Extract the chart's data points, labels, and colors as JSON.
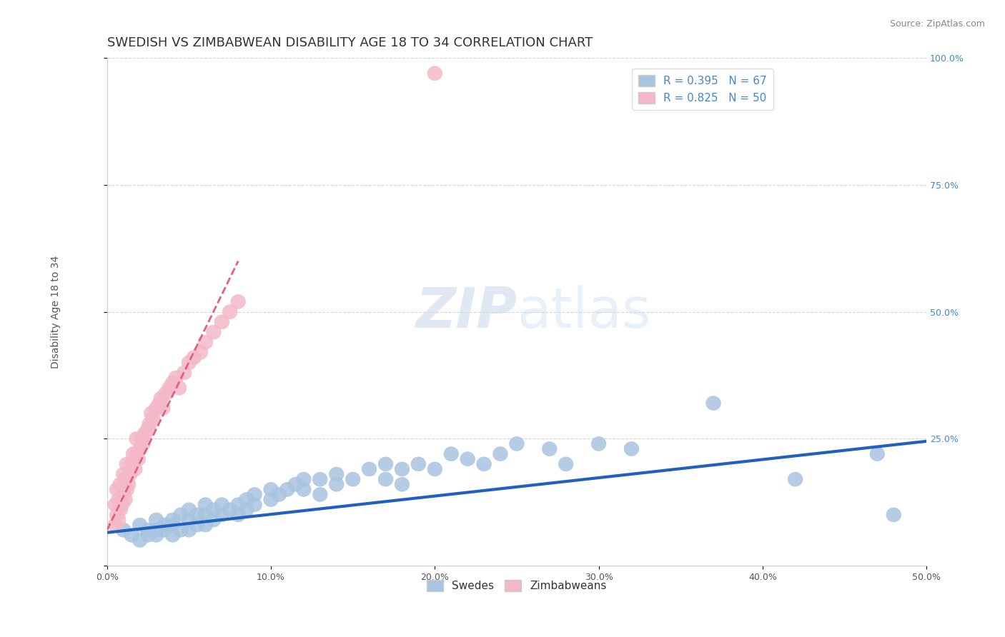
{
  "title": "SWEDISH VS ZIMBABWEAN DISABILITY AGE 18 TO 34 CORRELATION CHART",
  "source_text": "Source: ZipAtlas.com",
  "ylabel": "Disability Age 18 to 34",
  "xlim": [
    0.0,
    0.5
  ],
  "ylim": [
    0.0,
    1.0
  ],
  "xticks": [
    0.0,
    0.1,
    0.2,
    0.3,
    0.4,
    0.5
  ],
  "xticklabels": [
    "0.0%",
    "10.0%",
    "20.0%",
    "30.0%",
    "40.0%",
    "50.0%"
  ],
  "yticks": [
    0.0,
    0.25,
    0.5,
    0.75,
    1.0
  ],
  "yticklabels": [
    "",
    "25.0%",
    "50.0%",
    "75.0%",
    "100.0%"
  ],
  "blue_R": 0.395,
  "blue_N": 67,
  "pink_R": 0.825,
  "pink_N": 50,
  "blue_color": "#a8c4e0",
  "pink_color": "#f4b8c8",
  "blue_line_color": "#2060c0",
  "pink_line_color": "#e06080",
  "legend_label_blue": "Swedes",
  "legend_label_pink": "Zimbabweans",
  "blue_scatter_x": [
    0.01,
    0.015,
    0.02,
    0.02,
    0.025,
    0.025,
    0.03,
    0.03,
    0.03,
    0.035,
    0.035,
    0.04,
    0.04,
    0.04,
    0.045,
    0.045,
    0.05,
    0.05,
    0.05,
    0.055,
    0.055,
    0.06,
    0.06,
    0.06,
    0.065,
    0.065,
    0.07,
    0.07,
    0.075,
    0.08,
    0.08,
    0.085,
    0.085,
    0.09,
    0.09,
    0.1,
    0.1,
    0.105,
    0.11,
    0.115,
    0.12,
    0.12,
    0.13,
    0.13,
    0.14,
    0.14,
    0.15,
    0.16,
    0.17,
    0.17,
    0.18,
    0.18,
    0.19,
    0.2,
    0.21,
    0.22,
    0.23,
    0.24,
    0.25,
    0.27,
    0.28,
    0.3,
    0.32,
    0.37,
    0.42,
    0.47,
    0.48
  ],
  "blue_scatter_y": [
    0.07,
    0.06,
    0.08,
    0.05,
    0.07,
    0.06,
    0.09,
    0.07,
    0.06,
    0.08,
    0.07,
    0.09,
    0.08,
    0.06,
    0.1,
    0.07,
    0.11,
    0.09,
    0.07,
    0.1,
    0.08,
    0.12,
    0.1,
    0.08,
    0.11,
    0.09,
    0.12,
    0.1,
    0.11,
    0.12,
    0.1,
    0.13,
    0.11,
    0.14,
    0.12,
    0.15,
    0.13,
    0.14,
    0.15,
    0.16,
    0.17,
    0.15,
    0.17,
    0.14,
    0.18,
    0.16,
    0.17,
    0.19,
    0.2,
    0.17,
    0.19,
    0.16,
    0.2,
    0.19,
    0.22,
    0.21,
    0.2,
    0.22,
    0.24,
    0.23,
    0.2,
    0.24,
    0.23,
    0.32,
    0.17,
    0.22,
    0.1
  ],
  "pink_scatter_x": [
    0.005,
    0.005,
    0.006,
    0.006,
    0.007,
    0.007,
    0.008,
    0.008,
    0.009,
    0.01,
    0.01,
    0.011,
    0.011,
    0.012,
    0.012,
    0.013,
    0.014,
    0.015,
    0.016,
    0.017,
    0.018,
    0.018,
    0.019,
    0.02,
    0.021,
    0.022,
    0.023,
    0.025,
    0.026,
    0.027,
    0.028,
    0.03,
    0.032,
    0.033,
    0.034,
    0.036,
    0.038,
    0.04,
    0.042,
    0.044,
    0.047,
    0.05,
    0.053,
    0.057,
    0.06,
    0.065,
    0.07,
    0.075,
    0.08,
    0.2
  ],
  "pink_scatter_y": [
    0.08,
    0.12,
    0.1,
    0.15,
    0.09,
    0.13,
    0.11,
    0.16,
    0.12,
    0.14,
    0.18,
    0.13,
    0.17,
    0.15,
    0.2,
    0.16,
    0.18,
    0.2,
    0.22,
    0.19,
    0.22,
    0.25,
    0.21,
    0.23,
    0.25,
    0.24,
    0.26,
    0.27,
    0.28,
    0.3,
    0.29,
    0.31,
    0.32,
    0.33,
    0.31,
    0.34,
    0.35,
    0.36,
    0.37,
    0.35,
    0.38,
    0.4,
    0.41,
    0.42,
    0.44,
    0.46,
    0.48,
    0.5,
    0.52,
    0.97
  ],
  "blue_line_x": [
    0.0,
    0.5
  ],
  "blue_line_y": [
    0.065,
    0.245
  ],
  "pink_line_x": [
    0.0,
    0.08
  ],
  "pink_line_y": [
    0.07,
    0.6
  ],
  "background_color": "#ffffff",
  "grid_color": "#cccccc",
  "title_fontsize": 13,
  "axis_label_fontsize": 10,
  "tick_fontsize": 9,
  "legend_fontsize": 11,
  "source_fontsize": 9,
  "right_ytick_color": "#4488cc",
  "right_ytick_labels": [
    "100.0%",
    "75.0%",
    "50.0%",
    "25.0%"
  ],
  "right_ytick_values": [
    1.0,
    0.75,
    0.5,
    0.25
  ]
}
